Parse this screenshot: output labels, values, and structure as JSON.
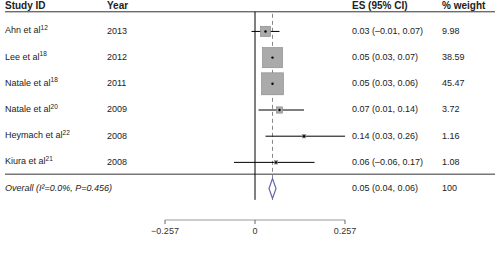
{
  "chart_data": {
    "type": "forest",
    "columns": [
      "Study ID",
      "Year",
      "ES (95% CI)",
      "% weight"
    ],
    "categories": [
      "Ahn et al",
      "Lee et al",
      "Natale et al",
      "Natale et al",
      "Heymach et al",
      "Kiura et al"
    ],
    "superscripts": [
      "12",
      "18",
      "18",
      "20",
      "22",
      "21"
    ],
    "years": [
      "2013",
      "2012",
      "2011",
      "2009",
      "2008",
      "2008"
    ],
    "values": [
      0.03,
      0.05,
      0.05,
      0.07,
      0.14,
      0.06
    ],
    "ci_low": [
      -0.01,
      0.03,
      0.03,
      0.01,
      0.03,
      -0.06
    ],
    "ci_high": [
      0.07,
      0.07,
      0.06,
      0.14,
      0.26,
      0.17
    ],
    "weights": [
      9.98,
      38.59,
      45.47,
      3.72,
      1.16,
      1.08
    ],
    "value_labels": [
      "0.03 (–0.01, 0.07)",
      "0.05 (0.03, 0.07)",
      "0.05 (0.03, 0.06)",
      "0.07 (0.01, 0.14)",
      "0.14 (0.03, 0.26)",
      "0.06 (–0.06, 0.17)"
    ],
    "color": "#aaaaaa",
    "overall": {
      "label": "Overall (I²=0.0%, P=0.456)",
      "value": 0.05,
      "ci_low": 0.04,
      "ci_high": 0.06,
      "value_label": "0.05 (0.04, 0.06)",
      "weight": 100,
      "color": "#6666aa"
    },
    "reference_lines": [
      {
        "value": 0,
        "line_style": "solid"
      },
      {
        "value": 0.05,
        "line_style": "dashed"
      }
    ],
    "xlim": [
      -0.257,
      0.257
    ],
    "xticks": [
      {
        "value": -0.257,
        "label": "−0.257"
      },
      0,
      0.257
    ]
  }
}
